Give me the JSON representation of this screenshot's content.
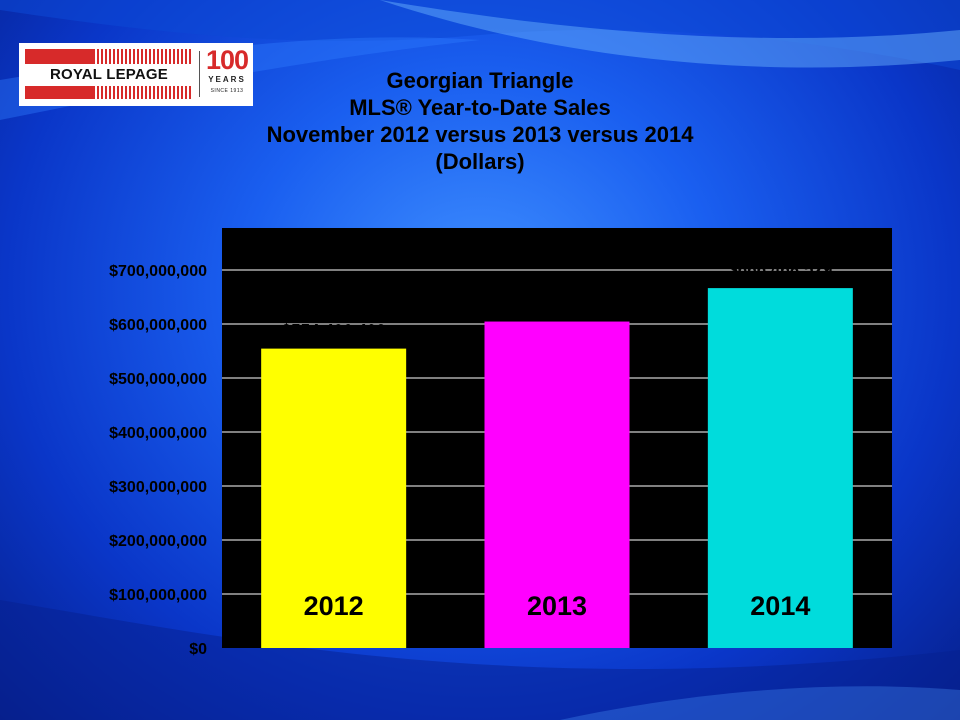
{
  "logo": {
    "brand": "ROYAL LEPAGE",
    "hundred": "100",
    "years": "YEARS",
    "since": "SINCE 1913"
  },
  "colors": {
    "plot_bg": "#000000",
    "grid": "#ffffff"
  },
  "chart_data": {
    "type": "bar",
    "title": [
      "Georgian Triangle",
      "MLS® Year-to-Date Sales",
      "November 2012 versus 2013 versus 2014",
      "(Dollars)"
    ],
    "xlabel": "",
    "ylabel": "",
    "categories": [
      "2012",
      "2013",
      "2014"
    ],
    "values": [
      554426408,
      604538024,
      666468529
    ],
    "data_labels": [
      "$554,426,408",
      "$604,538,024",
      "$666,468,529"
    ],
    "bar_colors": [
      "#ffff00",
      "#ff00ff",
      "#00dcdc"
    ],
    "ylim": [
      0,
      700000000
    ],
    "yticks": [
      0,
      100000000,
      200000000,
      300000000,
      400000000,
      500000000,
      600000000,
      700000000
    ],
    "ytick_labels": [
      "$0",
      "$100,000,000",
      "$200,000,000",
      "$300,000,000",
      "$400,000,000",
      "$500,000,000",
      "$600,000,000",
      "$700,000,000"
    ],
    "grid": true,
    "legend": "none"
  }
}
